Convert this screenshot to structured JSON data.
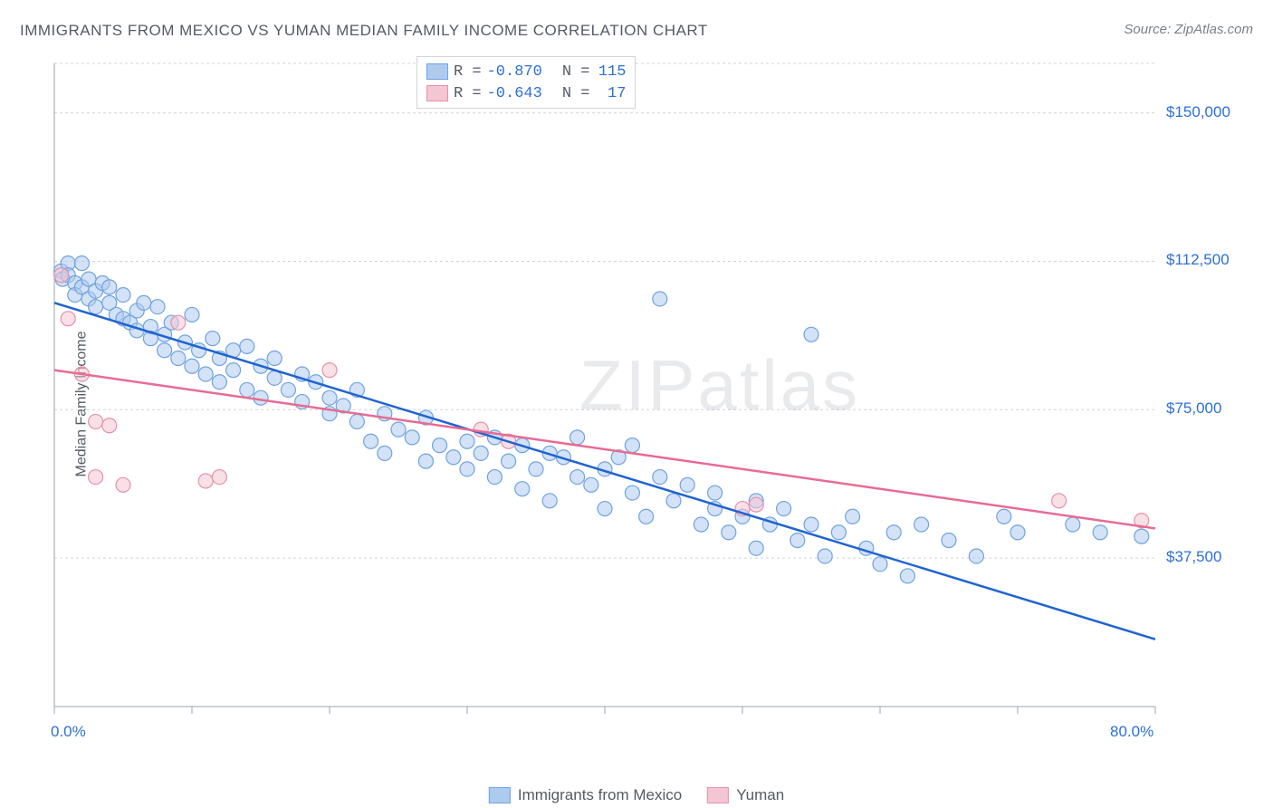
{
  "title": "IMMIGRANTS FROM MEXICO VS YUMAN MEDIAN FAMILY INCOME CORRELATION CHART",
  "source_label": "Source:",
  "source_value": "ZipAtlas.com",
  "ylabel": "Median Family Income",
  "watermark_a": "ZIP",
  "watermark_b": "atlas",
  "chart": {
    "type": "scatter",
    "xlim": [
      0,
      80
    ],
    "ylim": [
      0,
      162500
    ],
    "y_gridlines": [
      37500,
      75000,
      112500,
      150000
    ],
    "y_ticklabels": [
      "$37,500",
      "$75,000",
      "$112,500",
      "$150,000"
    ],
    "x_ticks": [
      0,
      10,
      20,
      30,
      40,
      50,
      60,
      70,
      80
    ],
    "x_min_label": "0.0%",
    "x_max_label": "80.0%",
    "background_color": "#ffffff",
    "grid_color": "#cfd4da",
    "axis_color": "#9ea5ad",
    "marker_radius": 8,
    "marker_opacity": 0.55,
    "line_width": 2.5,
    "series": [
      {
        "name": "Immigrants from Mexico",
        "fill": "#aecbef",
        "stroke": "#6fa3e0",
        "line_color": "#1f64d0",
        "r_label": "R =",
        "r_value": "-0.870",
        "n_label": "N =",
        "n_value": "115",
        "trend": {
          "x1": 0,
          "y1": 102000,
          "x2": 80,
          "y2": 17000
        },
        "points": [
          [
            0.5,
            110000
          ],
          [
            0.6,
            108000
          ],
          [
            1,
            112000
          ],
          [
            1,
            109000
          ],
          [
            1.5,
            107000
          ],
          [
            1.5,
            104000
          ],
          [
            2,
            112000
          ],
          [
            2,
            106000
          ],
          [
            2.5,
            108000
          ],
          [
            2.5,
            103000
          ],
          [
            3,
            105000
          ],
          [
            3,
            101000
          ],
          [
            3.5,
            107000
          ],
          [
            4,
            106000
          ],
          [
            4,
            102000
          ],
          [
            4.5,
            99000
          ],
          [
            5,
            104000
          ],
          [
            5,
            98000
          ],
          [
            5.5,
            97000
          ],
          [
            6,
            100000
          ],
          [
            6,
            95000
          ],
          [
            6.5,
            102000
          ],
          [
            7,
            96000
          ],
          [
            7,
            93000
          ],
          [
            7.5,
            101000
          ],
          [
            8,
            94000
          ],
          [
            8,
            90000
          ],
          [
            8.5,
            97000
          ],
          [
            9,
            88000
          ],
          [
            9.5,
            92000
          ],
          [
            10,
            99000
          ],
          [
            10,
            86000
          ],
          [
            10.5,
            90000
          ],
          [
            11,
            84000
          ],
          [
            11.5,
            93000
          ],
          [
            12,
            88000
          ],
          [
            12,
            82000
          ],
          [
            13,
            85000
          ],
          [
            13,
            90000
          ],
          [
            14,
            91000
          ],
          [
            14,
            80000
          ],
          [
            15,
            86000
          ],
          [
            15,
            78000
          ],
          [
            16,
            83000
          ],
          [
            16,
            88000
          ],
          [
            17,
            80000
          ],
          [
            18,
            77000
          ],
          [
            18,
            84000
          ],
          [
            19,
            82000
          ],
          [
            20,
            78000
          ],
          [
            20,
            74000
          ],
          [
            21,
            76000
          ],
          [
            22,
            80000
          ],
          [
            22,
            72000
          ],
          [
            23,
            67000
          ],
          [
            24,
            74000
          ],
          [
            24,
            64000
          ],
          [
            25,
            70000
          ],
          [
            26,
            68000
          ],
          [
            27,
            73000
          ],
          [
            27,
            62000
          ],
          [
            28,
            66000
          ],
          [
            29,
            63000
          ],
          [
            30,
            67000
          ],
          [
            30,
            60000
          ],
          [
            31,
            64000
          ],
          [
            32,
            68000
          ],
          [
            32,
            58000
          ],
          [
            33,
            62000
          ],
          [
            34,
            66000
          ],
          [
            34,
            55000
          ],
          [
            35,
            60000
          ],
          [
            36,
            64000
          ],
          [
            36,
            52000
          ],
          [
            37,
            63000
          ],
          [
            38,
            58000
          ],
          [
            38,
            68000
          ],
          [
            39,
            56000
          ],
          [
            40,
            60000
          ],
          [
            40,
            50000
          ],
          [
            41,
            63000
          ],
          [
            42,
            54000
          ],
          [
            42,
            66000
          ],
          [
            43,
            48000
          ],
          [
            44,
            58000
          ],
          [
            44,
            103000
          ],
          [
            45,
            52000
          ],
          [
            46,
            56000
          ],
          [
            47,
            46000
          ],
          [
            48,
            50000
          ],
          [
            48,
            54000
          ],
          [
            49,
            44000
          ],
          [
            50,
            48000
          ],
          [
            51,
            52000
          ],
          [
            51,
            40000
          ],
          [
            52,
            46000
          ],
          [
            53,
            50000
          ],
          [
            54,
            42000
          ],
          [
            55,
            46000
          ],
          [
            55,
            94000
          ],
          [
            56,
            38000
          ],
          [
            57,
            44000
          ],
          [
            58,
            48000
          ],
          [
            59,
            40000
          ],
          [
            60,
            36000
          ],
          [
            61,
            44000
          ],
          [
            62,
            33000
          ],
          [
            63,
            46000
          ],
          [
            65,
            42000
          ],
          [
            67,
            38000
          ],
          [
            69,
            48000
          ],
          [
            70,
            44000
          ],
          [
            74,
            46000
          ],
          [
            76,
            44000
          ],
          [
            79,
            43000
          ]
        ]
      },
      {
        "name": "Yuman",
        "fill": "#f4c6d4",
        "stroke": "#e690ab",
        "line_color": "#e86b92",
        "r_label": "R =",
        "r_value": "-0.643",
        "n_label": "N =",
        "n_value": "17",
        "trend": {
          "x1": 0,
          "y1": 85000,
          "x2": 80,
          "y2": 45000
        },
        "points": [
          [
            0.5,
            109000
          ],
          [
            1,
            98000
          ],
          [
            2,
            84000
          ],
          [
            3,
            72000
          ],
          [
            3,
            58000
          ],
          [
            4,
            71000
          ],
          [
            5,
            56000
          ],
          [
            9,
            97000
          ],
          [
            11,
            57000
          ],
          [
            12,
            58000
          ],
          [
            20,
            85000
          ],
          [
            31,
            70000
          ],
          [
            33,
            67000
          ],
          [
            50,
            50000
          ],
          [
            51,
            51000
          ],
          [
            73,
            52000
          ],
          [
            79,
            47000
          ]
        ]
      }
    ]
  },
  "bottom_legend": [
    {
      "label": "Immigrants from Mexico",
      "fill": "#aecbef",
      "stroke": "#6fa3e0"
    },
    {
      "label": "Yuman",
      "fill": "#f4c6d4",
      "stroke": "#e690ab"
    }
  ]
}
